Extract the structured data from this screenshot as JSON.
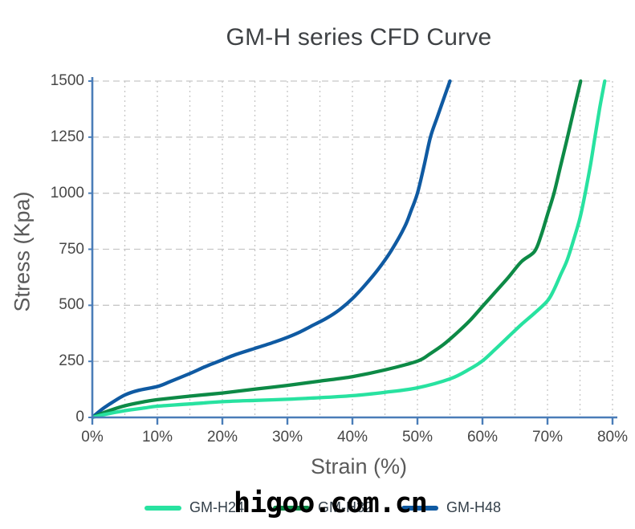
{
  "page": {
    "title": "GM-H series CFD Curve",
    "watermark": "higoo.com.cn"
  },
  "chart_data": {
    "type": "line",
    "title": "GM-H series CFD Curve",
    "xlabel": "Strain (%)",
    "ylabel": "Stress (Kpa)",
    "xlim": [
      0,
      80
    ],
    "ylim": [
      0,
      1500
    ],
    "xticks": [
      0,
      10,
      20,
      30,
      40,
      50,
      60,
      70,
      80
    ],
    "xtick_labels": [
      "0%",
      "10%",
      "20%",
      "30%",
      "40%",
      "50%",
      "60%",
      "70%",
      "80%"
    ],
    "yticks": [
      0,
      250,
      500,
      750,
      1000,
      1250,
      1500
    ],
    "ytick_labels": [
      "0",
      "250",
      "500",
      "750",
      "1000",
      "1250",
      "1500"
    ],
    "grid": {
      "x_step": 5,
      "y_step": 250,
      "color": "#c7c7c7"
    },
    "axis_color": "#4a7db8",
    "legend_position": "bottom",
    "series": [
      {
        "name": "GM-H24",
        "color": "#28e2a0",
        "points": [
          [
            0,
            0
          ],
          [
            2,
            14
          ],
          [
            5,
            30
          ],
          [
            8,
            42
          ],
          [
            10,
            50
          ],
          [
            15,
            60
          ],
          [
            20,
            70
          ],
          [
            25,
            76
          ],
          [
            30,
            81
          ],
          [
            35,
            88
          ],
          [
            40,
            97
          ],
          [
            45,
            112
          ],
          [
            50,
            132
          ],
          [
            55,
            172
          ],
          [
            58,
            215
          ],
          [
            60,
            252
          ],
          [
            62,
            305
          ],
          [
            64,
            360
          ],
          [
            66,
            415
          ],
          [
            68,
            465
          ],
          [
            70,
            520
          ],
          [
            71,
            570
          ],
          [
            72,
            635
          ],
          [
            73,
            700
          ],
          [
            74,
            790
          ],
          [
            75,
            890
          ],
          [
            75.8,
            1000
          ],
          [
            76.6,
            1125
          ],
          [
            77.3,
            1250
          ],
          [
            78,
            1375
          ],
          [
            78.8,
            1500
          ]
        ]
      },
      {
        "name": "GM-H32",
        "color": "#0d8a46",
        "points": [
          [
            0,
            0
          ],
          [
            2,
            24
          ],
          [
            5,
            52
          ],
          [
            8,
            70
          ],
          [
            10,
            79
          ],
          [
            15,
            95
          ],
          [
            20,
            109
          ],
          [
            25,
            126
          ],
          [
            30,
            143
          ],
          [
            35,
            162
          ],
          [
            40,
            182
          ],
          [
            45,
            212
          ],
          [
            50,
            251
          ],
          [
            52,
            285
          ],
          [
            54,
            325
          ],
          [
            56,
            375
          ],
          [
            58,
            430
          ],
          [
            60,
            495
          ],
          [
            62,
            560
          ],
          [
            64,
            625
          ],
          [
            66,
            695
          ],
          [
            68,
            740
          ],
          [
            69,
            810
          ],
          [
            70,
            905
          ],
          [
            71,
            1000
          ],
          [
            72,
            1120
          ],
          [
            73,
            1240
          ],
          [
            74,
            1365
          ],
          [
            75.1,
            1500
          ]
        ]
      },
      {
        "name": "GM-H48",
        "color": "#0f5aa2",
        "points": [
          [
            0,
            0
          ],
          [
            1,
            25
          ],
          [
            2,
            47
          ],
          [
            3,
            66
          ],
          [
            5,
            100
          ],
          [
            7,
            120
          ],
          [
            10,
            138
          ],
          [
            12,
            160
          ],
          [
            15,
            196
          ],
          [
            17,
            222
          ],
          [
            18,
            234
          ],
          [
            20,
            257
          ],
          [
            22,
            280
          ],
          [
            25,
            308
          ],
          [
            28,
            336
          ],
          [
            30,
            357
          ],
          [
            32,
            382
          ],
          [
            34,
            412
          ],
          [
            36,
            442
          ],
          [
            38,
            480
          ],
          [
            40,
            530
          ],
          [
            42,
            592
          ],
          [
            44,
            662
          ],
          [
            46,
            745
          ],
          [
            48,
            848
          ],
          [
            49,
            920
          ],
          [
            50,
            1000
          ],
          [
            51,
            1120
          ],
          [
            52,
            1250
          ],
          [
            53,
            1335
          ],
          [
            54,
            1418
          ],
          [
            55,
            1500
          ]
        ]
      }
    ]
  }
}
